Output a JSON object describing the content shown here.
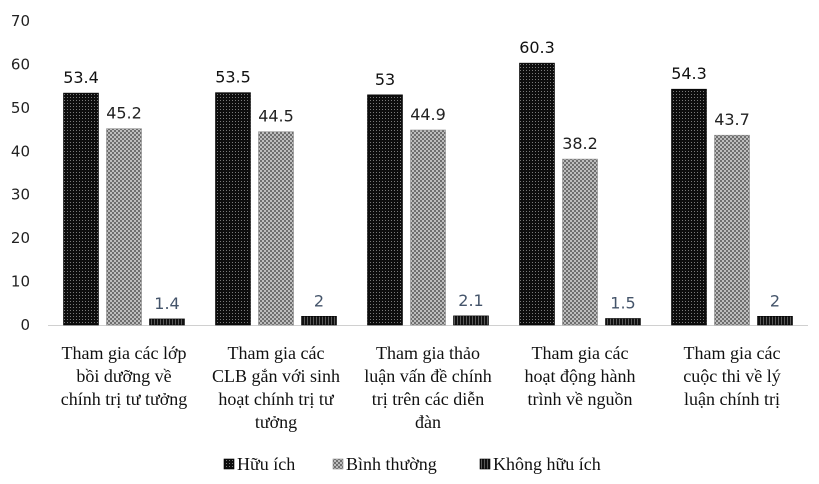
{
  "chart_data": {
    "type": "bar",
    "categories": [
      [
        "Tham gia các lớp",
        "bồi dưỡng về",
        "chính trị tư tưởng"
      ],
      [
        "Tham gia các",
        "CLB gắn với sinh",
        "hoạt chính trị tư",
        "tưởng"
      ],
      [
        "Tham gia thảo",
        "luận vấn đề chính",
        "trị trên các diễn",
        "đàn"
      ],
      [
        "Tham gia các",
        "hoạt động hành",
        "trình về nguồn"
      ],
      [
        "Tham gia các",
        "cuộc thi về lý",
        "luận chính trị"
      ]
    ],
    "series": [
      {
        "name": "Hữu ích",
        "values": [
          53.4,
          53.5,
          53,
          60.3,
          54.3
        ],
        "labels": [
          "53.4",
          "53.5",
          "53",
          "60.3",
          "54.3"
        ],
        "color": "#111111",
        "label_color": "#111111"
      },
      {
        "name": "Bình thường",
        "values": [
          45.2,
          44.5,
          44.9,
          38.2,
          43.7
        ],
        "labels": [
          "45.2",
          "44.5",
          "44.9",
          "38.2",
          "43.7"
        ],
        "color": "#9a9a9a",
        "label_color": "#222222"
      },
      {
        "name": "Không hữu ích",
        "values": [
          1.4,
          2,
          2.1,
          1.5,
          2
        ],
        "labels": [
          "1.4",
          "2",
          "2.1",
          "1.5",
          "2"
        ],
        "color": "#222222",
        "label_color": "#44546a"
      }
    ],
    "ylim": [
      0,
      70
    ],
    "yticks": [
      0,
      10,
      20,
      30,
      40,
      50,
      60,
      70
    ],
    "grid": false,
    "legend": "bottom"
  }
}
